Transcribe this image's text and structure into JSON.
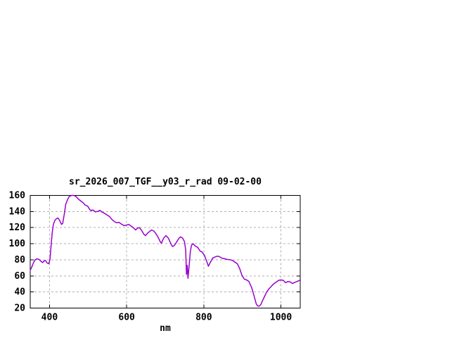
{
  "window": {
    "background": "#ffffff"
  },
  "chart_data": {
    "type": "line",
    "title": "sr_2026_007_TGF__y03_r_rad 09-02-00",
    "xlabel": "nm",
    "ylabel": "",
    "xlim": [
      350,
      1050
    ],
    "ylim": [
      20,
      160
    ],
    "x_ticks": [
      400,
      600,
      800,
      1000
    ],
    "y_ticks": [
      20,
      40,
      60,
      80,
      100,
      120,
      140,
      160
    ],
    "grid": true,
    "legend": "none",
    "colors": {
      "line": "#9900cc",
      "grid": "#b0b0b0",
      "axis": "#000000",
      "text": "#000000"
    },
    "series": [
      {
        "x": [
          350,
          354,
          358,
          362,
          366,
          370,
          374,
          378,
          382,
          386,
          390,
          394,
          398,
          401,
          404,
          407,
          410,
          414,
          418,
          422,
          426,
          431,
          434,
          438,
          442,
          446,
          450,
          454,
          458,
          462,
          466,
          470,
          474,
          477,
          480,
          484,
          488,
          492,
          496,
          500,
          504,
          508,
          511,
          515,
          519,
          523,
          527,
          531,
          535,
          540,
          545,
          550,
          556,
          562,
          568,
          574,
          580,
          586,
          593,
          599,
          605,
          611,
          617,
          623,
          629,
          633,
          638,
          645,
          649,
          654,
          660,
          665,
          671,
          675,
          681,
          687,
          690,
          696,
          702,
          708,
          715,
          719,
          724,
          730,
          736,
          740,
          745,
          750,
          753,
          755,
          757,
          759,
          762,
          765,
          768,
          772,
          778,
          784,
          790,
          796,
          802,
          808,
          812,
          817,
          823,
          829,
          835,
          840,
          847,
          853,
          860,
          869,
          875,
          881,
          887,
          893,
          899,
          905,
          911,
          917,
          924,
          930,
          936,
          940,
          944,
          948,
          951,
          957,
          963,
          969,
          975,
          981,
          987,
          994,
          1000,
          1006,
          1012,
          1018,
          1024,
          1030,
          1036,
          1042,
          1048,
          1050
        ],
        "y": [
          67,
          71,
          76,
          79.5,
          81,
          81,
          80,
          78,
          76.5,
          78.5,
          79,
          76,
          75,
          80,
          97,
          114,
          124,
          129,
          131,
          132,
          129,
          124,
          125,
          136,
          149,
          154,
          158,
          159.5,
          160,
          160,
          159.5,
          158,
          156,
          154.5,
          153.5,
          152,
          150.5,
          148,
          147.5,
          146,
          142.5,
          141,
          142,
          141,
          139.5,
          140,
          140.5,
          141.5,
          139.5,
          138.5,
          137,
          135.5,
          133.5,
          130,
          127.5,
          126,
          126.5,
          124.5,
          122.5,
          123,
          124,
          122,
          120,
          117,
          119.5,
          120,
          117,
          111.5,
          110,
          113,
          115.5,
          117,
          115.5,
          113,
          108.5,
          102.5,
          100.5,
          107,
          110,
          107,
          99.5,
          96.5,
          98,
          102.5,
          107,
          108.5,
          107,
          102.5,
          92,
          62,
          73,
          57,
          73,
          90,
          98,
          100,
          97,
          95.5,
          91,
          89.5,
          85,
          77.5,
          72,
          77,
          82,
          83.5,
          84.5,
          84,
          82,
          81.5,
          80.5,
          80,
          79,
          77,
          75,
          69,
          60.5,
          56,
          55,
          53,
          45.5,
          35.5,
          25,
          22.5,
          22.5,
          24.5,
          28,
          34,
          40,
          44,
          47,
          50,
          52,
          54.5,
          55,
          54.5,
          51.5,
          53,
          52.5,
          50.5,
          52,
          53,
          54.5,
          54
        ]
      }
    ]
  }
}
